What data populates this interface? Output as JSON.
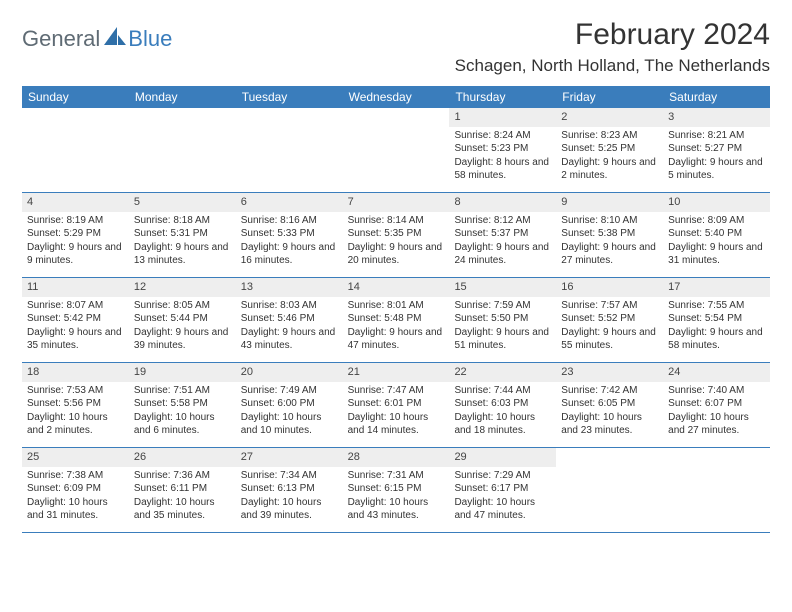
{
  "logo": {
    "text1": "General",
    "text2": "Blue"
  },
  "title": "February 2024",
  "location": "Schagen, North Holland, The Netherlands",
  "colors": {
    "header_bg": "#3a7dbc",
    "header_text": "#ffffff",
    "daynum_bg": "#eeeeee",
    "text": "#333333",
    "logo_gray": "#5f6b74",
    "logo_blue": "#3a7dbc",
    "row_border": "#3a7dbc"
  },
  "dayNames": [
    "Sunday",
    "Monday",
    "Tuesday",
    "Wednesday",
    "Thursday",
    "Friday",
    "Saturday"
  ],
  "weeks": [
    [
      {
        "empty": true
      },
      {
        "empty": true
      },
      {
        "empty": true
      },
      {
        "empty": true
      },
      {
        "num": "1",
        "sunrise": "Sunrise: 8:24 AM",
        "sunset": "Sunset: 5:23 PM",
        "daylight": "Daylight: 8 hours and 58 minutes."
      },
      {
        "num": "2",
        "sunrise": "Sunrise: 8:23 AM",
        "sunset": "Sunset: 5:25 PM",
        "daylight": "Daylight: 9 hours and 2 minutes."
      },
      {
        "num": "3",
        "sunrise": "Sunrise: 8:21 AM",
        "sunset": "Sunset: 5:27 PM",
        "daylight": "Daylight: 9 hours and 5 minutes."
      }
    ],
    [
      {
        "num": "4",
        "sunrise": "Sunrise: 8:19 AM",
        "sunset": "Sunset: 5:29 PM",
        "daylight": "Daylight: 9 hours and 9 minutes."
      },
      {
        "num": "5",
        "sunrise": "Sunrise: 8:18 AM",
        "sunset": "Sunset: 5:31 PM",
        "daylight": "Daylight: 9 hours and 13 minutes."
      },
      {
        "num": "6",
        "sunrise": "Sunrise: 8:16 AM",
        "sunset": "Sunset: 5:33 PM",
        "daylight": "Daylight: 9 hours and 16 minutes."
      },
      {
        "num": "7",
        "sunrise": "Sunrise: 8:14 AM",
        "sunset": "Sunset: 5:35 PM",
        "daylight": "Daylight: 9 hours and 20 minutes."
      },
      {
        "num": "8",
        "sunrise": "Sunrise: 8:12 AM",
        "sunset": "Sunset: 5:37 PM",
        "daylight": "Daylight: 9 hours and 24 minutes."
      },
      {
        "num": "9",
        "sunrise": "Sunrise: 8:10 AM",
        "sunset": "Sunset: 5:38 PM",
        "daylight": "Daylight: 9 hours and 27 minutes."
      },
      {
        "num": "10",
        "sunrise": "Sunrise: 8:09 AM",
        "sunset": "Sunset: 5:40 PM",
        "daylight": "Daylight: 9 hours and 31 minutes."
      }
    ],
    [
      {
        "num": "11",
        "sunrise": "Sunrise: 8:07 AM",
        "sunset": "Sunset: 5:42 PM",
        "daylight": "Daylight: 9 hours and 35 minutes."
      },
      {
        "num": "12",
        "sunrise": "Sunrise: 8:05 AM",
        "sunset": "Sunset: 5:44 PM",
        "daylight": "Daylight: 9 hours and 39 minutes."
      },
      {
        "num": "13",
        "sunrise": "Sunrise: 8:03 AM",
        "sunset": "Sunset: 5:46 PM",
        "daylight": "Daylight: 9 hours and 43 minutes."
      },
      {
        "num": "14",
        "sunrise": "Sunrise: 8:01 AM",
        "sunset": "Sunset: 5:48 PM",
        "daylight": "Daylight: 9 hours and 47 minutes."
      },
      {
        "num": "15",
        "sunrise": "Sunrise: 7:59 AM",
        "sunset": "Sunset: 5:50 PM",
        "daylight": "Daylight: 9 hours and 51 minutes."
      },
      {
        "num": "16",
        "sunrise": "Sunrise: 7:57 AM",
        "sunset": "Sunset: 5:52 PM",
        "daylight": "Daylight: 9 hours and 55 minutes."
      },
      {
        "num": "17",
        "sunrise": "Sunrise: 7:55 AM",
        "sunset": "Sunset: 5:54 PM",
        "daylight": "Daylight: 9 hours and 58 minutes."
      }
    ],
    [
      {
        "num": "18",
        "sunrise": "Sunrise: 7:53 AM",
        "sunset": "Sunset: 5:56 PM",
        "daylight": "Daylight: 10 hours and 2 minutes."
      },
      {
        "num": "19",
        "sunrise": "Sunrise: 7:51 AM",
        "sunset": "Sunset: 5:58 PM",
        "daylight": "Daylight: 10 hours and 6 minutes."
      },
      {
        "num": "20",
        "sunrise": "Sunrise: 7:49 AM",
        "sunset": "Sunset: 6:00 PM",
        "daylight": "Daylight: 10 hours and 10 minutes."
      },
      {
        "num": "21",
        "sunrise": "Sunrise: 7:47 AM",
        "sunset": "Sunset: 6:01 PM",
        "daylight": "Daylight: 10 hours and 14 minutes."
      },
      {
        "num": "22",
        "sunrise": "Sunrise: 7:44 AM",
        "sunset": "Sunset: 6:03 PM",
        "daylight": "Daylight: 10 hours and 18 minutes."
      },
      {
        "num": "23",
        "sunrise": "Sunrise: 7:42 AM",
        "sunset": "Sunset: 6:05 PM",
        "daylight": "Daylight: 10 hours and 23 minutes."
      },
      {
        "num": "24",
        "sunrise": "Sunrise: 7:40 AM",
        "sunset": "Sunset: 6:07 PM",
        "daylight": "Daylight: 10 hours and 27 minutes."
      }
    ],
    [
      {
        "num": "25",
        "sunrise": "Sunrise: 7:38 AM",
        "sunset": "Sunset: 6:09 PM",
        "daylight": "Daylight: 10 hours and 31 minutes."
      },
      {
        "num": "26",
        "sunrise": "Sunrise: 7:36 AM",
        "sunset": "Sunset: 6:11 PM",
        "daylight": "Daylight: 10 hours and 35 minutes."
      },
      {
        "num": "27",
        "sunrise": "Sunrise: 7:34 AM",
        "sunset": "Sunset: 6:13 PM",
        "daylight": "Daylight: 10 hours and 39 minutes."
      },
      {
        "num": "28",
        "sunrise": "Sunrise: 7:31 AM",
        "sunset": "Sunset: 6:15 PM",
        "daylight": "Daylight: 10 hours and 43 minutes."
      },
      {
        "num": "29",
        "sunrise": "Sunrise: 7:29 AM",
        "sunset": "Sunset: 6:17 PM",
        "daylight": "Daylight: 10 hours and 47 minutes."
      },
      {
        "empty": true
      },
      {
        "empty": true
      }
    ]
  ]
}
